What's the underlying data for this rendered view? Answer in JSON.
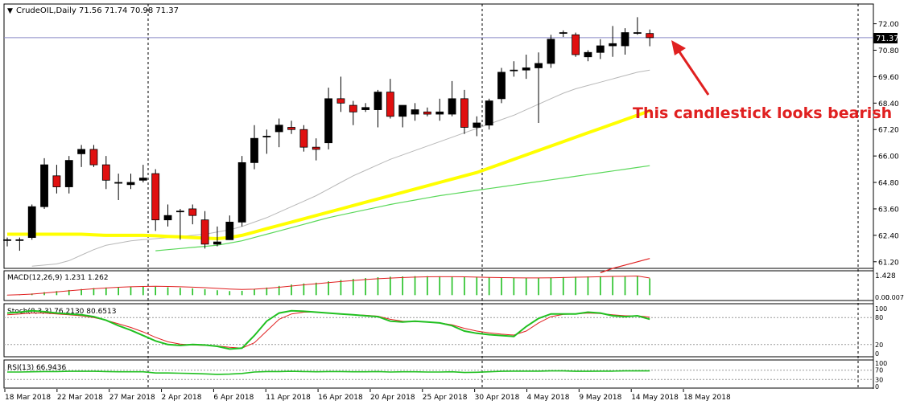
{
  "header": {
    "symbol_line": "CrudeOIL,Daily  71.56 71.74 70.98 71.37"
  },
  "annotation": {
    "text": "This candlestick looks bearish",
    "color": "#e02020"
  },
  "price_badge": "71.37",
  "colors": {
    "up_candle": "#000000",
    "down_candle": "#e01010",
    "ma_gray": "#b8b8b8",
    "ma_yellow": "#ffff00",
    "ma_green": "#5ad85a",
    "ma_red": "#e02020",
    "macd_hist": "#20c020",
    "macd_signal": "#e02020",
    "stoch_main": "#20c020",
    "stoch_signal": "#e02020",
    "rsi": "#20c020",
    "grid_frame": "#000000"
  },
  "chart_data": [
    {
      "type": "candlestick",
      "name": "CrudeOIL,Daily",
      "y_ticks": [
        "72.00",
        "70.80",
        "69.60",
        "68.40",
        "67.20",
        "66.00",
        "64.80",
        "63.60",
        "62.40",
        "61.20"
      ],
      "ylim": [
        60.9,
        72.35
      ],
      "current_price": 71.37,
      "x_labels": [
        "18 Mar 2018",
        "22 Mar 2018",
        "27 Mar 2018",
        "2 Apr 2018",
        "6 Apr 2018",
        "11 Apr 2018",
        "16 Apr 2018",
        "20 Apr 2018",
        "25 Apr 2018",
        "30 Apr 2018",
        "4 May 2018",
        "9 May 2018",
        "14 May 2018",
        "18 May 2018"
      ],
      "candles": [
        {
          "o": 62.2,
          "h": 62.3,
          "l": 61.9,
          "c": 62.2
        },
        {
          "o": 62.2,
          "h": 62.3,
          "l": 61.7,
          "c": 62.2
        },
        {
          "o": 62.3,
          "h": 63.8,
          "l": 62.2,
          "c": 63.7
        },
        {
          "o": 63.7,
          "h": 65.9,
          "l": 63.6,
          "c": 65.6
        },
        {
          "o": 65.1,
          "h": 65.6,
          "l": 64.3,
          "c": 64.6
        },
        {
          "o": 64.6,
          "h": 66.0,
          "l": 64.3,
          "c": 65.8
        },
        {
          "o": 66.1,
          "h": 66.5,
          "l": 65.5,
          "c": 66.3
        },
        {
          "o": 66.3,
          "h": 66.5,
          "l": 65.5,
          "c": 65.6
        },
        {
          "o": 65.6,
          "h": 66.0,
          "l": 64.5,
          "c": 64.9
        },
        {
          "o": 64.8,
          "h": 65.2,
          "l": 64.0,
          "c": 64.8
        },
        {
          "o": 64.7,
          "h": 65.2,
          "l": 64.5,
          "c": 64.8
        },
        {
          "o": 64.9,
          "h": 65.6,
          "l": 64.8,
          "c": 65.0
        },
        {
          "o": 65.2,
          "h": 65.4,
          "l": 62.6,
          "c": 63.1
        },
        {
          "o": 63.1,
          "h": 63.8,
          "l": 62.8,
          "c": 63.3
        },
        {
          "o": 63.5,
          "h": 63.6,
          "l": 62.2,
          "c": 63.5
        },
        {
          "o": 63.6,
          "h": 63.8,
          "l": 62.9,
          "c": 63.3
        },
        {
          "o": 63.1,
          "h": 63.5,
          "l": 61.8,
          "c": 62.0
        },
        {
          "o": 62.0,
          "h": 62.8,
          "l": 61.9,
          "c": 62.1
        },
        {
          "o": 62.2,
          "h": 63.3,
          "l": 62.2,
          "c": 63.0
        },
        {
          "o": 63.0,
          "h": 66.0,
          "l": 62.8,
          "c": 65.7
        },
        {
          "o": 65.7,
          "h": 67.4,
          "l": 65.4,
          "c": 66.8
        },
        {
          "o": 66.9,
          "h": 67.2,
          "l": 66.1,
          "c": 66.9
        },
        {
          "o": 67.1,
          "h": 67.7,
          "l": 66.4,
          "c": 67.4
        },
        {
          "o": 67.3,
          "h": 67.6,
          "l": 67.0,
          "c": 67.2
        },
        {
          "o": 67.2,
          "h": 67.4,
          "l": 66.2,
          "c": 66.4
        },
        {
          "o": 66.4,
          "h": 66.8,
          "l": 65.8,
          "c": 66.3
        },
        {
          "o": 66.6,
          "h": 69.1,
          "l": 66.3,
          "c": 68.6
        },
        {
          "o": 68.6,
          "h": 69.6,
          "l": 68.0,
          "c": 68.4
        },
        {
          "o": 68.3,
          "h": 68.5,
          "l": 67.4,
          "c": 68.0
        },
        {
          "o": 68.1,
          "h": 68.4,
          "l": 68.0,
          "c": 68.2
        },
        {
          "o": 68.1,
          "h": 69.0,
          "l": 67.3,
          "c": 68.9
        },
        {
          "o": 68.9,
          "h": 69.5,
          "l": 67.7,
          "c": 67.8
        },
        {
          "o": 67.8,
          "h": 68.2,
          "l": 67.3,
          "c": 68.3
        },
        {
          "o": 67.9,
          "h": 68.4,
          "l": 67.6,
          "c": 68.1
        },
        {
          "o": 68.0,
          "h": 68.2,
          "l": 67.8,
          "c": 67.9
        },
        {
          "o": 67.9,
          "h": 68.6,
          "l": 67.6,
          "c": 68.0
        },
        {
          "o": 67.9,
          "h": 69.4,
          "l": 67.8,
          "c": 68.6
        },
        {
          "o": 68.6,
          "h": 69.0,
          "l": 67.0,
          "c": 67.3
        },
        {
          "o": 67.3,
          "h": 67.8,
          "l": 66.9,
          "c": 67.5
        },
        {
          "o": 67.4,
          "h": 68.6,
          "l": 67.2,
          "c": 68.5
        },
        {
          "o": 68.6,
          "h": 70.0,
          "l": 68.4,
          "c": 69.8
        },
        {
          "o": 69.9,
          "h": 70.3,
          "l": 69.6,
          "c": 69.9
        },
        {
          "o": 69.9,
          "h": 70.6,
          "l": 69.5,
          "c": 70.0
        },
        {
          "o": 70.0,
          "h": 70.7,
          "l": 67.5,
          "c": 70.2
        },
        {
          "o": 70.2,
          "h": 71.5,
          "l": 70.0,
          "c": 71.3
        },
        {
          "o": 71.6,
          "h": 71.7,
          "l": 71.4,
          "c": 71.6
        },
        {
          "o": 71.5,
          "h": 71.6,
          "l": 70.5,
          "c": 70.6
        },
        {
          "o": 70.5,
          "h": 70.8,
          "l": 70.3,
          "c": 70.7
        },
        {
          "o": 70.7,
          "h": 71.3,
          "l": 70.4,
          "c": 71.0
        },
        {
          "o": 71.0,
          "h": 71.9,
          "l": 70.5,
          "c": 71.1
        },
        {
          "o": 71.0,
          "h": 71.8,
          "l": 70.6,
          "c": 71.6
        },
        {
          "o": 71.6,
          "h": 72.3,
          "l": 71.5,
          "c": 71.6
        },
        {
          "o": 71.56,
          "h": 71.74,
          "l": 70.98,
          "c": 71.37
        }
      ],
      "ma_series": [
        {
          "color": "gray",
          "values": [
            null,
            null,
            61.0,
            61.05,
            61.1,
            61.25,
            61.5,
            61.75,
            61.95,
            62.05,
            62.15,
            62.2,
            62.25,
            62.3,
            62.35,
            62.4,
            62.45,
            62.55,
            62.65,
            62.8,
            63.0,
            63.2,
            63.45,
            63.7,
            63.95,
            64.2,
            64.5,
            64.8,
            65.1,
            65.35,
            65.6,
            65.85,
            66.05,
            66.25,
            66.45,
            66.65,
            66.85,
            67.05,
            67.25,
            67.45,
            67.65,
            67.85,
            68.1,
            68.35,
            68.6,
            68.85,
            69.05,
            69.2,
            69.35,
            69.5,
            69.65,
            69.8,
            69.9
          ]
        },
        {
          "color": "yellow",
          "values": [
            62.45,
            62.45,
            62.45,
            62.45,
            62.45,
            62.45,
            62.45,
            62.42,
            62.4,
            62.4,
            62.4,
            62.4,
            62.38,
            62.35,
            62.33,
            62.3,
            62.27,
            62.25,
            62.3,
            62.4,
            62.55,
            62.7,
            62.85,
            63.0,
            63.15,
            63.3,
            63.45,
            63.6,
            63.75,
            63.9,
            64.05,
            64.2,
            64.35,
            64.5,
            64.65,
            64.8,
            64.95,
            65.1,
            65.25,
            65.45,
            65.65,
            65.85,
            66.05,
            66.25,
            66.45,
            66.65,
            66.85,
            67.05,
            67.25,
            67.45,
            67.65,
            67.85,
            68.05
          ]
        },
        {
          "color": "green",
          "values": [
            null,
            null,
            null,
            null,
            null,
            null,
            null,
            null,
            null,
            null,
            null,
            null,
            61.7,
            61.75,
            61.8,
            61.85,
            61.9,
            61.95,
            62.05,
            62.15,
            62.3,
            62.45,
            62.6,
            62.75,
            62.9,
            63.05,
            63.2,
            63.32,
            63.44,
            63.56,
            63.68,
            63.8,
            63.9,
            64.0,
            64.1,
            64.2,
            64.28,
            64.36,
            64.44,
            64.52,
            64.6,
            64.68,
            64.76,
            64.84,
            64.92,
            65.0,
            65.08,
            65.16,
            65.24,
            65.32,
            65.4,
            65.48,
            65.56
          ]
        },
        {
          "color": "red",
          "values": [
            null,
            null,
            null,
            null,
            null,
            null,
            null,
            null,
            null,
            null,
            null,
            null,
            null,
            null,
            null,
            null,
            null,
            null,
            null,
            null,
            null,
            null,
            null,
            null,
            null,
            null,
            null,
            null,
            null,
            null,
            null,
            null,
            null,
            null,
            null,
            null,
            null,
            null,
            null,
            null,
            null,
            null,
            null,
            null,
            null,
            null,
            null,
            null,
            60.7,
            60.9,
            61.05,
            61.2,
            61.35
          ]
        }
      ]
    },
    {
      "type": "bar",
      "name": "MACD(12,26,9) 1.231 1.262",
      "y_ticks": [
        "1.428",
        "0.00",
        "0.007"
      ],
      "ylim": [
        -0.1,
        1.5
      ],
      "histogram": [
        0.02,
        0.05,
        0.12,
        0.22,
        0.3,
        0.38,
        0.45,
        0.52,
        0.56,
        0.6,
        0.62,
        0.64,
        0.62,
        0.58,
        0.54,
        0.5,
        0.44,
        0.36,
        0.3,
        0.32,
        0.44,
        0.56,
        0.68,
        0.78,
        0.86,
        0.92,
        1.02,
        1.12,
        1.2,
        1.26,
        1.32,
        1.36,
        1.38,
        1.4,
        1.4,
        1.39,
        1.38,
        1.36,
        1.33,
        1.31,
        1.28,
        1.28,
        1.27,
        1.28,
        1.3,
        1.33,
        1.36,
        1.38,
        1.39,
        1.4,
        1.41,
        1.42,
        1.231
      ],
      "signal": [
        0.0,
        0.03,
        0.08,
        0.15,
        0.24,
        0.32,
        0.4,
        0.47,
        0.53,
        0.58,
        0.62,
        0.64,
        0.65,
        0.64,
        0.62,
        0.59,
        0.55,
        0.5,
        0.45,
        0.42,
        0.44,
        0.5,
        0.58,
        0.67,
        0.76,
        0.84,
        0.92,
        1.0,
        1.08,
        1.15,
        1.21,
        1.26,
        1.3,
        1.33,
        1.35,
        1.36,
        1.36,
        1.35,
        1.33,
        1.31,
        1.29,
        1.28,
        1.27,
        1.27,
        1.28,
        1.3,
        1.32,
        1.34,
        1.36,
        1.38,
        1.39,
        1.41,
        1.262
      ]
    },
    {
      "type": "line",
      "name": "Stoch(8,3,3) 76.2130 80.6513",
      "y_ticks": [
        "100",
        "80",
        "20",
        "0"
      ],
      "ylim": [
        0,
        100
      ],
      "main": [
        90,
        92,
        95,
        93,
        90,
        88,
        86,
        82,
        74,
        62,
        52,
        40,
        28,
        20,
        18,
        20,
        19,
        16,
        10,
        12,
        40,
        72,
        90,
        95,
        94,
        92,
        90,
        88,
        86,
        84,
        82,
        72,
        70,
        72,
        70,
        68,
        62,
        50,
        45,
        42,
        40,
        38,
        60,
        78,
        88,
        88,
        88,
        92,
        90,
        84,
        82,
        84,
        76.213
      ],
      "signal": [
        86,
        88,
        90,
        90,
        88,
        86,
        84,
        80,
        74,
        66,
        58,
        48,
        36,
        26,
        21,
        19,
        18,
        17,
        14,
        12,
        24,
        50,
        76,
        88,
        92,
        92,
        90,
        88,
        86,
        85,
        83,
        76,
        72,
        71,
        70,
        68,
        64,
        56,
        50,
        46,
        43,
        41,
        50,
        68,
        82,
        87,
        88,
        90,
        89,
        86,
        84,
        84,
        80.6513
      ]
    },
    {
      "type": "line",
      "name": "RSI(13) 66.9436",
      "y_ticks": [
        "100",
        "70",
        "30",
        "0"
      ],
      "ylim": [
        0,
        100
      ],
      "values": [
        62,
        62,
        63,
        64,
        64,
        65,
        65,
        65,
        64,
        63,
        63,
        63,
        58,
        58,
        57,
        56,
        54,
        52,
        53,
        56,
        62,
        64,
        64,
        65,
        64,
        63,
        64,
        64,
        63,
        63,
        64,
        62,
        63,
        63,
        62,
        62,
        63,
        60,
        61,
        63,
        65,
        66,
        66,
        66,
        67,
        67,
        65,
        65,
        66,
        66,
        67,
        67,
        66.9436
      ]
    }
  ]
}
